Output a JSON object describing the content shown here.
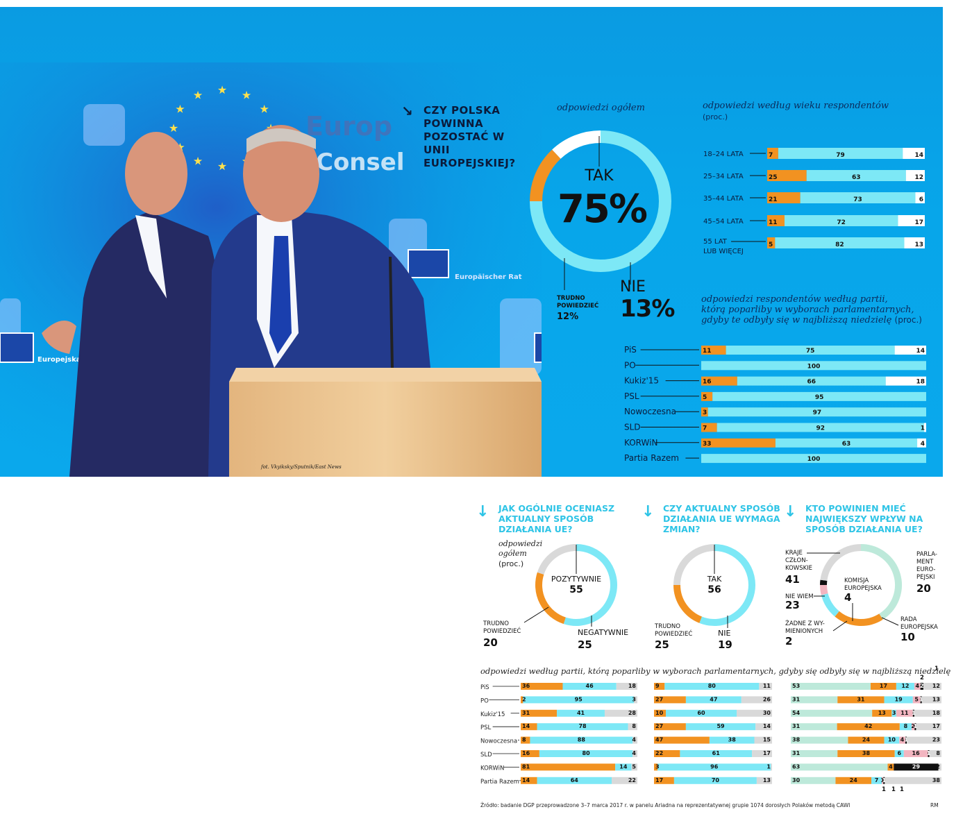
{
  "colors": {
    "tak": "#7de8f6",
    "nie": "#f29221",
    "trudno": "#ffffff",
    "grey": "#d9d9d9",
    "green": "#bde9da",
    "pink": "#f2b5c0",
    "black": "#111111",
    "orange": "#f29221",
    "cyan": "#7de8f6",
    "title_cyan": "#2ec4e6"
  },
  "photo": {
    "credit": "fot. Vkyiksky/Sputnik/East News",
    "sign1": "Europ",
    "sign2": "Consel",
    "sign3": "Europejska",
    "sign4": "Europäischer Rat",
    "podium_label": ""
  },
  "main": {
    "question": "CZY POLSKA POWINNA POZOSTAĆ W UNII EUROPEJSKIEJ?",
    "subtitle": "odpowiedzi ogółem",
    "tak_label": "TAK",
    "tak_value": "75%",
    "nie_label": "NIE",
    "nie_value": "13%",
    "trudno_label": "TRUDNO POWIEDZIEĆ",
    "trudno_value": "12%",
    "chart_data": {
      "type": "pie",
      "categories": [
        "TAK",
        "NIE",
        "TRUDNO POWIEDZIEĆ"
      ],
      "values": [
        75,
        13,
        12
      ]
    }
  },
  "age": {
    "title": "odpowiedzi według wieku respondentów",
    "unit": "(proc.)",
    "chart_data": {
      "type": "bar",
      "stacked": true,
      "categories": [
        "18–24 LATA",
        "25–34 LATA",
        "35–44 LATA",
        "45–54 LATA",
        "55 LAT LUB WIĘCEJ"
      ],
      "series": [
        {
          "values": [
            7,
            25,
            21,
            11,
            5
          ]
        },
        {
          "values": [
            79,
            63,
            73,
            72,
            82
          ]
        },
        {
          "values": [
            14,
            12,
            6,
            17,
            13
          ]
        }
      ]
    }
  },
  "party": {
    "title_line1": "odpowiedzi respondentów według partii,",
    "title_line2": "którą poparliby w wyborach parlamentarnych,",
    "title_line3": "gdyby te odbyły się w najbliższą niedzielę",
    "unit": "(proc.)",
    "chart_data": {
      "type": "bar",
      "stacked": true,
      "categories": [
        "PiS",
        "PO",
        "Kukiz'15",
        "PSL",
        "Nowoczesna",
        "SLD",
        "KORWiN",
        "Partia Razem"
      ],
      "series": [
        {
          "values": [
            11,
            0,
            16,
            5,
            3,
            7,
            33,
            0
          ]
        },
        {
          "values": [
            75,
            100,
            66,
            95,
            97,
            92,
            63,
            100
          ]
        },
        {
          "values": [
            14,
            0,
            18,
            0,
            0,
            1,
            4,
            0
          ]
        }
      ]
    }
  },
  "q2": {
    "question": "JAK OGÓLNIE OCENIASZ AKTUALNY SPOSÓB DZIAŁANIA UE?",
    "subtitle1": "odpowiedzi",
    "subtitle2": "ogółem",
    "unit": "(proc.)",
    "pos_label": "POZYTYWNIE",
    "pos_value": "55",
    "neg_label": "NEGATYWNIE",
    "neg_value": "25",
    "tr_label": "TRUDNO POWIEDZIEĆ",
    "tr_value": "20",
    "chart_data": {
      "type": "pie",
      "categories": [
        "POZYTYWNIE",
        "NEGATYWNIE",
        "TRUDNO POWIEDZIEĆ"
      ],
      "values": [
        55,
        25,
        20
      ]
    }
  },
  "q3": {
    "question": "CZY AKTUALNY SPOSÓB DZIAŁANIA UE WYMAGA ZMIAN?",
    "tak_label": "TAK",
    "tak_value": "56",
    "nie_label": "NIE",
    "nie_value": "19",
    "tr_label": "TRUDNO POWIEDZIEĆ",
    "tr_value": "25",
    "chart_data": {
      "type": "pie",
      "categories": [
        "TAK",
        "NIE",
        "TRUDNO POWIEDZIEĆ"
      ],
      "values": [
        56,
        19,
        25
      ]
    }
  },
  "q4": {
    "question": "KTO POWINIEN MIEĆ NAJWIĘKSZY WPŁYW NA SPOSÓB DZIAŁANIA UE?",
    "kraje_label": "KRAJE CZŁON-KOWSKIE",
    "kraje_value": "41",
    "parl_label": "PARLA-MENT EURO-PEJSKI",
    "parl_value": "20",
    "rada_label": "RADA EUROPEJSKA",
    "rada_value": "10",
    "kom_label": "KOMISJA EUROPEJSKA",
    "kom_value": "4",
    "nw_label": "NIE WIEM",
    "nw_value": "23",
    "zadne_label": "ŻADNE Z WY-MIENIONYCH",
    "zadne_value": "2",
    "chart_data": {
      "type": "pie",
      "categories": [
        "KRAJE CZŁONKOWSKIE",
        "PARLAMENT EUROPEJSKI",
        "RADA EUROPEJSKA",
        "KOMISJA EUROPEJSKA",
        "ŻADNE Z WYMIENIONYCH",
        "NIE WIEM"
      ],
      "values": [
        41,
        20,
        10,
        4,
        2,
        23
      ]
    }
  },
  "bottom_party": {
    "title": "odpowiedzi według partii, którą poparliby w wyborach parlamentarnych, gdyby się odbyły się w najbliższą niedzielę",
    "categories": [
      "PiS",
      "PO",
      "Kukiz'15",
      "PSL",
      "Nowoczesna",
      "SLD",
      "KORWiN",
      "Partia Razem"
    ],
    "chart_data": [
      {
        "type": "bar",
        "stacked": true,
        "series": [
          {
            "values": [
              36,
              2,
              31,
              14,
              8,
              16,
              81,
              14
            ]
          },
          {
            "values": [
              46,
              95,
              41,
              78,
              88,
              80,
              14,
              64
            ]
          },
          {
            "values": [
              18,
              3,
              28,
              8,
              4,
              4,
              5,
              22
            ]
          }
        ]
      },
      {
        "type": "bar",
        "stacked": true,
        "series": [
          {
            "values": [
              9,
              27,
              10,
              27,
              47,
              22,
              3,
              17
            ]
          },
          {
            "values": [
              80,
              47,
              60,
              59,
              38,
              61,
              96,
              70
            ]
          },
          {
            "values": [
              11,
              26,
              30,
              14,
              15,
              17,
              1,
              13
            ]
          }
        ]
      },
      {
        "type": "bar",
        "stacked": true,
        "series": [
          {
            "values": [
              53,
              31,
              54,
              31,
              38,
              31,
              63,
              30
            ]
          },
          {
            "values": [
              17,
              31,
              13,
              42,
              24,
              38,
              4,
              24
            ]
          },
          {
            "values": [
              12,
              19,
              3,
              8,
              10,
              6,
              0,
              7
            ]
          },
          {
            "values": [
              4,
              5,
              11,
              2,
              4,
              16,
              0,
              1
            ]
          },
          {
            "values": [
              2,
              1,
              1,
              1,
              1,
              1,
              29,
              1
            ]
          },
          {
            "values": [
              12,
              13,
              18,
              17,
              23,
              8,
              2,
              38
            ]
          }
        ]
      }
    ],
    "extra_top_labels": [
      "2",
      "1"
    ],
    "extra_bottom_labels": [
      "1",
      "1",
      "1"
    ]
  },
  "footer": {
    "source": "Źródło: badanie DGP przeprowadzone 3–7 marca 2017 r. w panelu Ariadna na reprezentatywnej grupie 1074 dorosłych Polaków metodą CAWI",
    "sign": "RM"
  }
}
